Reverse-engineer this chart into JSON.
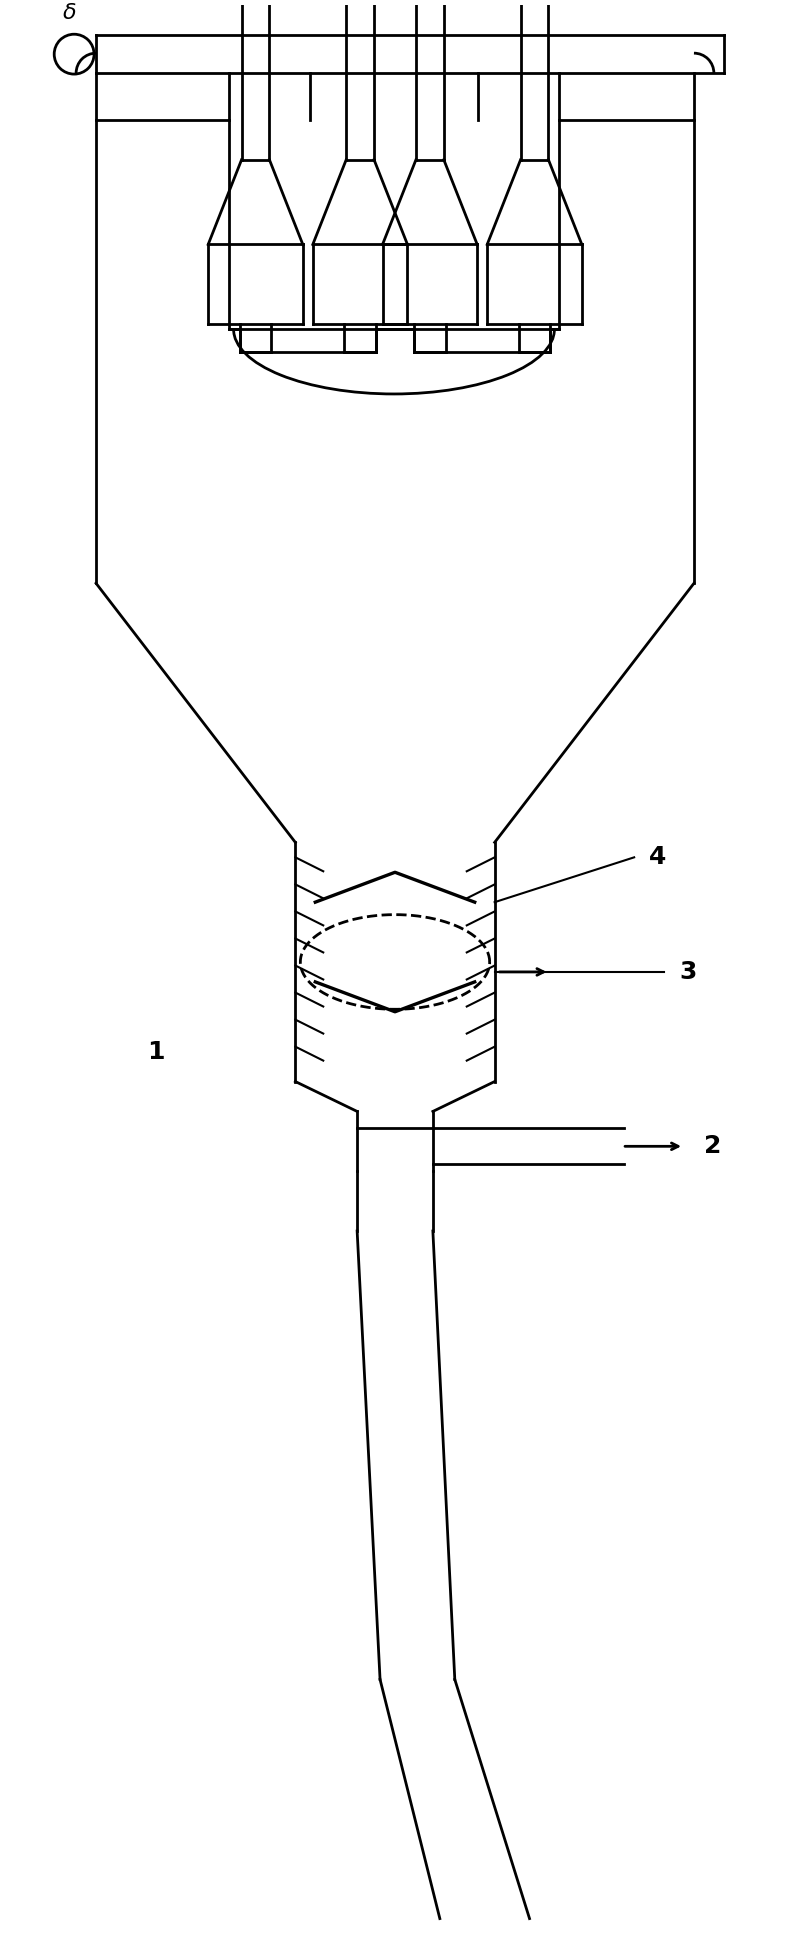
{
  "lw": 2.0,
  "lw_thin": 1.5,
  "color": "black",
  "fig_w": 7.91,
  "fig_h": 19.43,
  "bg_color": "white",
  "label_1": "1",
  "label_2": "2",
  "label_3": "3",
  "label_4": "4",
  "label_delta": "δ",
  "fontsize_label": 16
}
